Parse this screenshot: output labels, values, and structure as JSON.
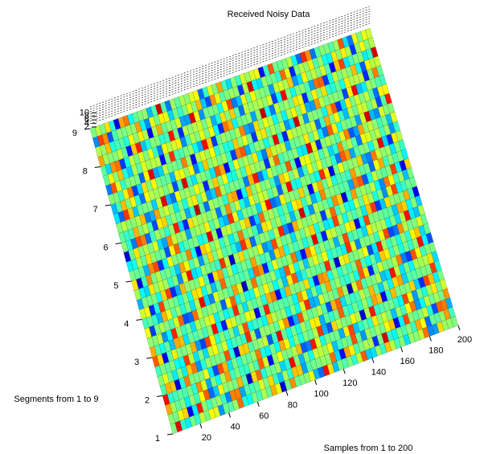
{
  "chart_data": {
    "type": "surface",
    "title": "Received Noisy Data",
    "xlabel": "Samples from 1 to 200",
    "ylabel": "Segments from 1 to 9",
    "xlim": [
      1,
      200
    ],
    "xticks": [
      20,
      40,
      60,
      80,
      100,
      120,
      140,
      160,
      180,
      200
    ],
    "ylim": [
      1,
      9
    ],
    "yticks": [
      1,
      2,
      3,
      4,
      5,
      6,
      7,
      8,
      9
    ],
    "zticks": [
      2,
      4,
      6,
      8,
      10
    ],
    "colormap": "jet"
  }
}
